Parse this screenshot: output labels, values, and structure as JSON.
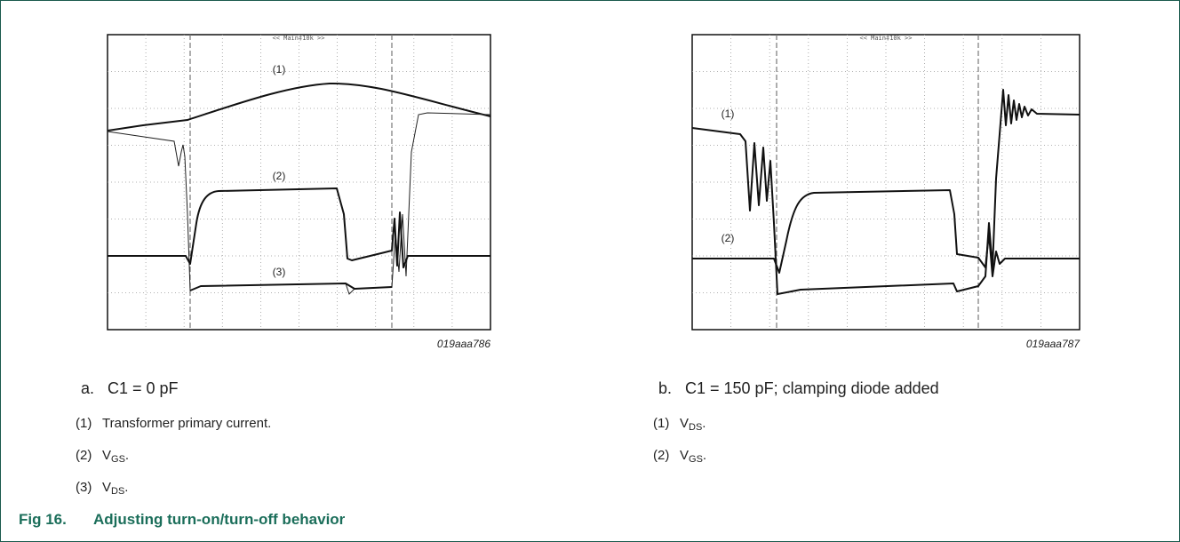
{
  "scopes": [
    {
      "header": "<< Main‡10k >>",
      "ref": "019aaa786",
      "labels": [
        "(1)",
        "(2)",
        "(3)"
      ]
    },
    {
      "header": "<< Main‡10k >>",
      "ref": "019aaa787",
      "labels": [
        "(1)",
        "(2)"
      ]
    }
  ],
  "panels": [
    {
      "letter": "a.",
      "caption": "C1 = 0 pF",
      "items": [
        {
          "num": "(1)",
          "text": "Transformer primary current."
        },
        {
          "num": "(2)",
          "text": "V",
          "sub": "GS",
          "end": "."
        },
        {
          "num": "(3)",
          "text": "V",
          "sub": "DS",
          "end": "."
        }
      ]
    },
    {
      "letter": "b.",
      "caption": "C1 = 150 pF; clamping diode added",
      "items": [
        {
          "num": "(1)",
          "text": "V",
          "sub": "DS",
          "end": "."
        },
        {
          "num": "(2)",
          "text": "V",
          "sub": "GS",
          "end": "."
        }
      ]
    }
  ],
  "figure": {
    "number": "Fig 16.",
    "title": "Adjusting turn-on/turn-off behavior"
  }
}
